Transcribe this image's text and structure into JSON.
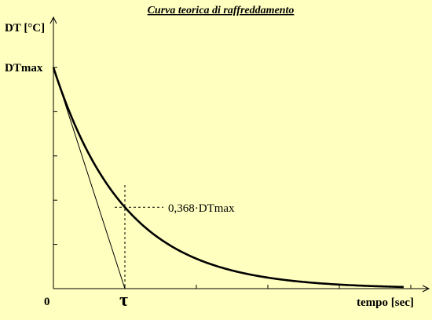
{
  "chart_data": {
    "type": "line",
    "title": "Curva teorica di raffreddamento",
    "xlabel": "tempo [sec]",
    "ylabel": "DT [°C]",
    "y_max_label": "DTmax",
    "origin_label": "0",
    "tau_label": "τ",
    "annotation": "0,368·DTmax",
    "tau_fraction": 0.368,
    "x_range_tau": [
      0,
      4.9
    ],
    "y_range_fraction": [
      0,
      1
    ],
    "series": [
      {
        "values_fraction_at_tau_multiples": [
          1.0,
          0.368,
          0.135,
          0.05,
          0.018,
          0.007
        ]
      }
    ],
    "x_ticks_count": 5,
    "y_ticks_count": 5,
    "grid": false
  }
}
